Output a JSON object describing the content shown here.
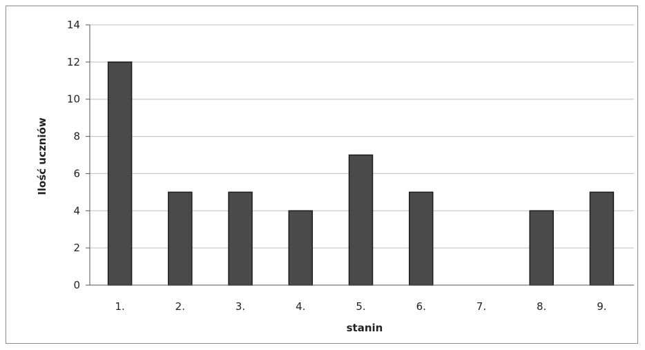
{
  "chart_data": {
    "type": "bar",
    "categories": [
      "1.",
      "2.",
      "3.",
      "4.",
      "5.",
      "6.",
      "7.",
      "8.",
      "9."
    ],
    "values": [
      12,
      5,
      5,
      4,
      7,
      5,
      0,
      4,
      5
    ],
    "title": "",
    "xlabel": "stanin",
    "ylabel": "Ilość uczniów",
    "ylim": [
      0,
      14
    ],
    "yticks": [
      "0",
      "2",
      "4",
      "6",
      "8",
      "10",
      "12",
      "14"
    ],
    "grid": true,
    "legend": "none",
    "colors": {
      "bar": "#4a4a4a",
      "bar_edge": "#1c1c1c",
      "grid": "#bdbdbd",
      "axis": "#555555"
    }
  }
}
